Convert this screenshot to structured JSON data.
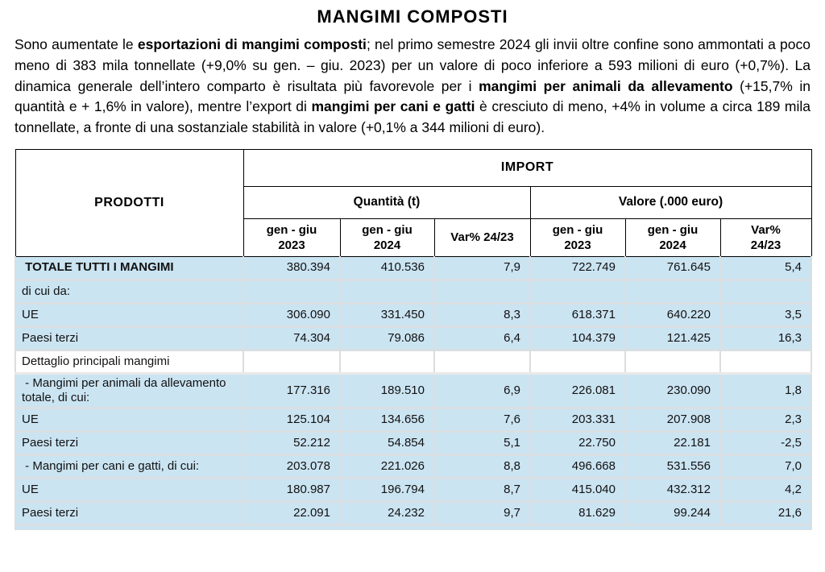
{
  "title": "MANGIMI COMPOSTI",
  "paragraph": {
    "segments": [
      {
        "text": "Sono aumentate le ",
        "bold": false
      },
      {
        "text": "esportazioni di mangimi composti",
        "bold": true
      },
      {
        "text": "; nel primo semestre 2024 gli invii oltre confine sono ammontati a poco meno di 383 mila tonnellate (+9,0% su gen. – giu. 2023) per un valore di poco inferiore a 593 milioni di euro (+0,7%). La dinamica generale dell’intero comparto è risultata più favorevole per i ",
        "bold": false
      },
      {
        "text": "mangimi per animali da allevamento",
        "bold": true
      },
      {
        "text": " (+15,7% in quantità e + 1,6% in valore), mentre l’export di ",
        "bold": false
      },
      {
        "text": "mangimi per cani e gatti",
        "bold": true
      },
      {
        "text": " è cresciuto di meno, +4% in volume a circa 189 mila tonnellate, a fronte di una sostanziale stabilità in valore (+0,1% a 344 milioni di euro).",
        "bold": false
      }
    ]
  },
  "table": {
    "col_product": "PRODOTTI",
    "group_header": "IMPORT",
    "subgroups": [
      "Quantità (t)",
      "Valore (.000 euro)"
    ],
    "columns": [
      "gen - giu\n2023",
      "gen - giu\n2024",
      "Var% 24/23",
      "gen - giu\n2023",
      "gen - giu\n2024",
      "Var%\n24/23"
    ],
    "rows": [
      {
        "label": " TOTALE TUTTI I MANGIMI",
        "bold": true,
        "bg": "blue",
        "values": [
          "380.394",
          "410.536",
          "7,9",
          "722.749",
          "761.645",
          "5,4"
        ]
      },
      {
        "label": "di cui da:",
        "bold": false,
        "bg": "blue",
        "values": [
          "",
          "",
          "",
          "",
          "",
          ""
        ]
      },
      {
        "label": "UE",
        "bold": false,
        "bg": "blue",
        "values": [
          "306.090",
          "331.450",
          "8,3",
          "618.371",
          "640.220",
          "3,5"
        ]
      },
      {
        "label": "Paesi terzi",
        "bold": false,
        "bg": "blue",
        "values": [
          "74.304",
          "79.086",
          "6,4",
          "104.379",
          "121.425",
          "16,3"
        ]
      },
      {
        "label": "Dettaglio principali mangimi",
        "bold": false,
        "bg": "white",
        "values": [
          "",
          "",
          "",
          "",
          "",
          ""
        ]
      },
      {
        "label": " - Mangimi per animali da allevamento totale, di cui:",
        "bold": false,
        "bg": "blue",
        "values": [
          "177.316",
          "189.510",
          "6,9",
          "226.081",
          "230.090",
          "1,8"
        ]
      },
      {
        "label": "UE",
        "bold": false,
        "bg": "blue",
        "values": [
          "125.104",
          "134.656",
          "7,6",
          "203.331",
          "207.908",
          "2,3"
        ]
      },
      {
        "label": "Paesi terzi",
        "bold": false,
        "bg": "blue",
        "values": [
          "52.212",
          "54.854",
          "5,1",
          "22.750",
          "22.181",
          "-2,5"
        ]
      },
      {
        "label": " - Mangimi per cani e gatti, di cui:",
        "bold": false,
        "bg": "blue",
        "values": [
          "203.078",
          "221.026",
          "8,8",
          "496.668",
          "531.556",
          "7,0"
        ]
      },
      {
        "label": "UE",
        "bold": false,
        "bg": "blue",
        "values": [
          "180.987",
          "196.794",
          "8,7",
          "415.040",
          "432.312",
          "4,2"
        ]
      },
      {
        "label": "Paesi terzi",
        "bold": false,
        "bg": "blue",
        "values": [
          "22.091",
          "24.232",
          "9,7",
          "81.629",
          "99.244",
          "21,6"
        ]
      }
    ]
  },
  "colors": {
    "row_blue": "#cbe4f2",
    "grid_gray": "#d9dfe3",
    "header_border": "#000000"
  }
}
